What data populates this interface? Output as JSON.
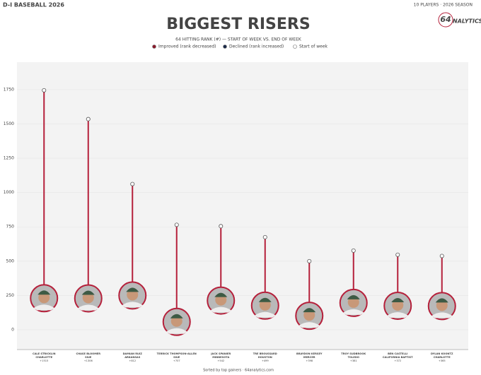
{
  "header": {
    "left": "D-I BASEBALL 2026",
    "right": "10 PLAYERS · 2026 SEASON",
    "logo_number": "64",
    "logo_text": "NALYTICS"
  },
  "chart_data": {
    "type": "dumbbell",
    "title": "BIGGEST RISERS",
    "subtitle": "64 HITTING RANK (#) — START OF WEEK VS. END OF WEEK",
    "legend": [
      {
        "label": "Improved (rank decreased)",
        "color": "#8b1a2b"
      },
      {
        "label": "Declined (rank increased)",
        "color": "#1c2b4a"
      },
      {
        "label": "Start of week",
        "color": "#ffffff"
      }
    ],
    "players": [
      {
        "name": "CALE STRICKLIN",
        "team": "CHARLOTTE",
        "change": "+1515"
      },
      {
        "name": "CHASE BLOOMER",
        "team": "SIUE",
        "change": "+1306"
      },
      {
        "name": "DAMIAN RUIZ",
        "team": "ARKANSAS",
        "change": "+812"
      },
      {
        "name": "TERRICK THOMPSON-ALLEN",
        "team": "SIUE",
        "change": "+707"
      },
      {
        "name": "JACK SPANIER",
        "team": "MINNESOTA",
        "change": "+542"
      },
      {
        "name": "TRE BROUSSARD",
        "team": "HOUSTON",
        "change": "+499"
      },
      {
        "name": "BRAYDON KERSEY",
        "team": "MERCER",
        "change": "+398"
      },
      {
        "name": "TROY SUDBROOK",
        "team": "TOLEDO",
        "change": "+381"
      },
      {
        "name": "BEN CASTELLI",
        "team": "CALIFORNIA BAPTIST",
        "change": "+372"
      },
      {
        "name": "DYLAN KOONTZ",
        "team": "CHARLOTTE",
        "change": "+365"
      }
    ],
    "start": [
      1745,
      1535,
      1062,
      765,
      755,
      675,
      500,
      577,
      547,
      538
    ],
    "end": [
      230,
      229,
      250,
      58,
      213,
      176,
      102,
      196,
      175,
      173
    ],
    "color": "#b5203b",
    "ylim": [
      -144,
      1950
    ],
    "yticks": [
      0,
      250,
      500,
      750,
      1000,
      1250,
      1500,
      1750
    ],
    "grid": true,
    "footer": "Sorted by top gainers · 64analytics.com"
  }
}
